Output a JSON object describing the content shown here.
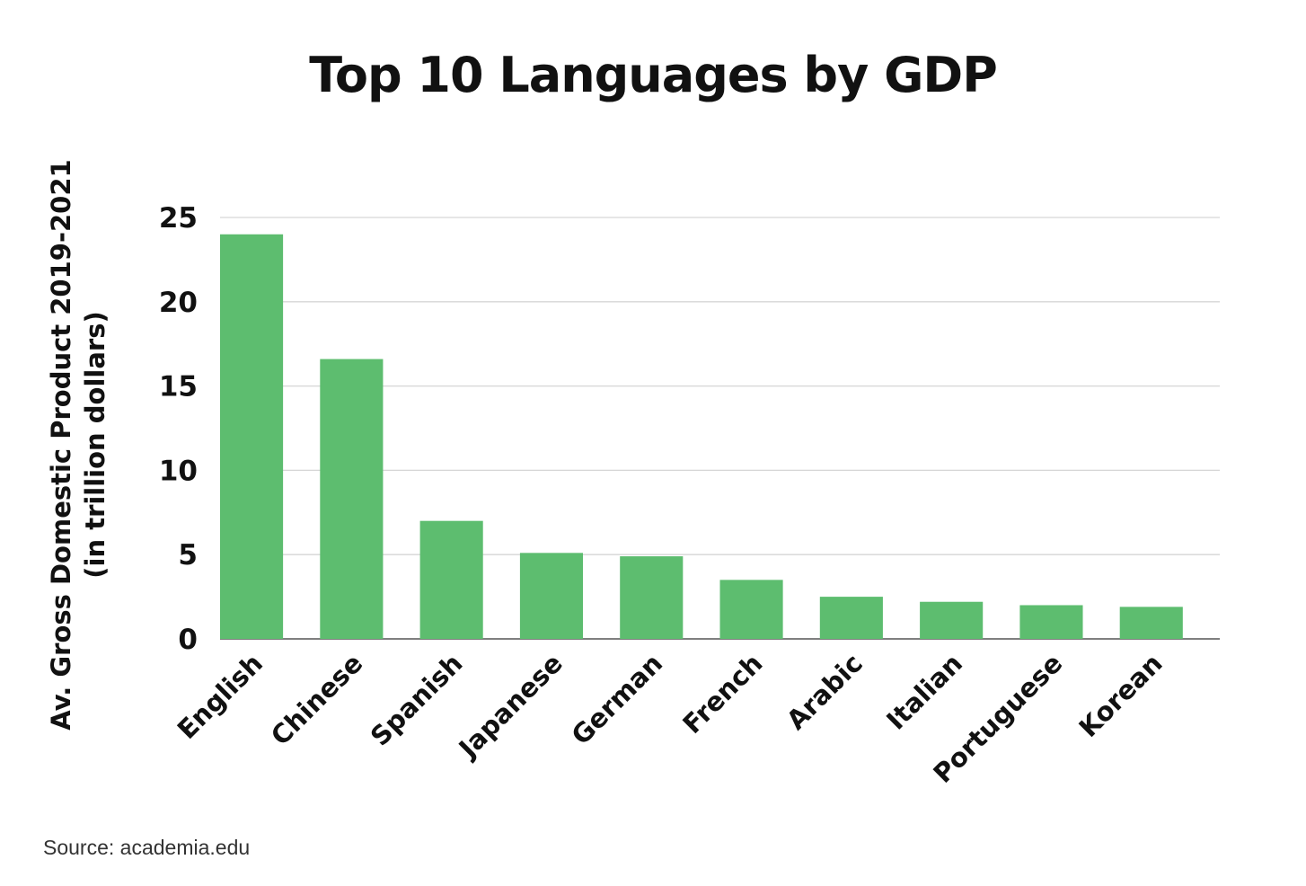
{
  "chart_data": {
    "type": "bar",
    "title": "Top 10 Languages by GDP",
    "xlabel": "",
    "ylabel": "Av. Gross Domestic Product 2019-2021",
    "ylabel_line2": "(in trillion dollars)",
    "categories": [
      "English",
      "Chinese",
      "Spanish",
      "Japanese",
      "German",
      "French",
      "Arabic",
      "Italian",
      "Portuguese",
      "Korean"
    ],
    "values": [
      24.0,
      16.6,
      7.0,
      5.1,
      4.9,
      3.5,
      2.5,
      2.2,
      2.0,
      1.9
    ],
    "ylim": [
      0,
      25
    ],
    "yticks": [
      0,
      5,
      10,
      15,
      20,
      25
    ],
    "grid": true,
    "legend": "none",
    "bar_color": "#5dbd6f"
  },
  "source": "Source: academia.edu"
}
